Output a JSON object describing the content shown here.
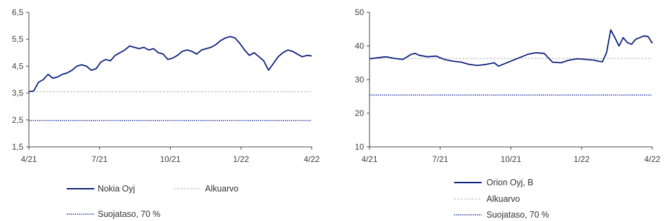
{
  "chart_data": [
    {
      "type": "line",
      "x_ticks": [
        "4/21",
        "7/21",
        "10/21",
        "1/22",
        "4/22"
      ],
      "y_ticks": [
        "1,5",
        "2,5",
        "3,5",
        "4,5",
        "5,5",
        "6,5"
      ],
      "ylim": [
        1.5,
        6.5
      ],
      "grid": false,
      "legend_position": "bottom",
      "series": [
        {
          "name": "Nokia Oyj",
          "style": "solid",
          "color": "#0a1e7a",
          "points": [
            [
              0,
              3.55
            ],
            [
              1,
              3.58
            ],
            [
              2,
              3.9
            ],
            [
              3,
              4.0
            ],
            [
              4,
              4.2
            ],
            [
              5,
              4.05
            ],
            [
              6,
              4.1
            ],
            [
              7,
              4.2
            ],
            [
              8,
              4.25
            ],
            [
              9,
              4.35
            ],
            [
              10,
              4.5
            ],
            [
              11,
              4.55
            ],
            [
              12,
              4.5
            ],
            [
              13,
              4.35
            ],
            [
              14,
              4.4
            ],
            [
              15,
              4.65
            ],
            [
              16,
              4.75
            ],
            [
              17,
              4.7
            ],
            [
              18,
              4.9
            ],
            [
              19,
              5.0
            ],
            [
              20,
              5.1
            ],
            [
              21,
              5.25
            ],
            [
              22,
              5.2
            ],
            [
              23,
              5.15
            ],
            [
              24,
              5.2
            ],
            [
              25,
              5.1
            ],
            [
              26,
              5.15
            ],
            [
              27,
              5.0
            ],
            [
              28,
              4.95
            ],
            [
              29,
              4.75
            ],
            [
              30,
              4.8
            ],
            [
              31,
              4.9
            ],
            [
              32,
              5.05
            ],
            [
              33,
              5.1
            ],
            [
              34,
              5.05
            ],
            [
              35,
              4.95
            ],
            [
              36,
              5.1
            ],
            [
              37,
              5.15
            ],
            [
              38,
              5.2
            ],
            [
              39,
              5.3
            ],
            [
              40,
              5.45
            ],
            [
              41,
              5.55
            ],
            [
              42,
              5.6
            ],
            [
              43,
              5.55
            ],
            [
              44,
              5.35
            ],
            [
              45,
              5.1
            ],
            [
              46,
              4.9
            ],
            [
              47,
              5.0
            ],
            [
              48,
              4.85
            ],
            [
              49,
              4.7
            ],
            [
              50,
              4.35
            ],
            [
              51,
              4.6
            ],
            [
              52,
              4.85
            ],
            [
              53,
              5.0
            ],
            [
              54,
              5.1
            ],
            [
              55,
              5.05
            ],
            [
              56,
              4.95
            ],
            [
              57,
              4.85
            ],
            [
              58,
              4.9
            ],
            [
              59,
              4.88
            ]
          ]
        },
        {
          "name": "Alkuarvo",
          "style": "dashed",
          "color": "#b4b4b4",
          "points": [
            [
              0,
              3.55
            ],
            [
              59,
              3.55
            ]
          ]
        },
        {
          "name": "Suojataso, 70 %",
          "style": "dotted",
          "color": "#1a2f99",
          "points": [
            [
              0,
              2.48
            ],
            [
              59,
              2.48
            ]
          ]
        }
      ]
    },
    {
      "type": "line",
      "x_ticks": [
        "4/21",
        "7/21",
        "10/21",
        "1/22",
        "4/22"
      ],
      "y_ticks": [
        "10",
        "20",
        "30",
        "40",
        "50"
      ],
      "ylim": [
        10,
        50
      ],
      "grid": false,
      "legend_position": "bottom",
      "series": [
        {
          "name": "Orion Oyj, B",
          "style": "solid",
          "color": "#0a1e7a",
          "points": [
            [
              0,
              36.2
            ],
            [
              2,
              36.5
            ],
            [
              4,
              36.8
            ],
            [
              6,
              36.3
            ],
            [
              8,
              36.0
            ],
            [
              10,
              37.5
            ],
            [
              11,
              37.8
            ],
            [
              12,
              37.2
            ],
            [
              14,
              36.8
            ],
            [
              16,
              37.0
            ],
            [
              18,
              36.0
            ],
            [
              20,
              35.5
            ],
            [
              22,
              35.2
            ],
            [
              24,
              34.5
            ],
            [
              26,
              34.2
            ],
            [
              28,
              34.5
            ],
            [
              30,
              35.0
            ],
            [
              31,
              34.0
            ],
            [
              32,
              34.5
            ],
            [
              34,
              35.5
            ],
            [
              36,
              36.5
            ],
            [
              38,
              37.5
            ],
            [
              40,
              38.0
            ],
            [
              42,
              37.8
            ],
            [
              43,
              36.5
            ],
            [
              44,
              35.2
            ],
            [
              46,
              35.0
            ],
            [
              48,
              35.8
            ],
            [
              50,
              36.2
            ],
            [
              52,
              36.0
            ],
            [
              54,
              35.8
            ],
            [
              55,
              35.5
            ],
            [
              56,
              35.3
            ],
            [
              57,
              38.0
            ],
            [
              58,
              44.8
            ],
            [
              59,
              42.5
            ],
            [
              60,
              40.0
            ],
            [
              61,
              42.5
            ],
            [
              62,
              41.0
            ],
            [
              63,
              40.5
            ],
            [
              64,
              42.0
            ],
            [
              65,
              42.5
            ],
            [
              66,
              43.0
            ],
            [
              67,
              42.8
            ],
            [
              68,
              40.8
            ]
          ]
        },
        {
          "name": "Alkuarvo",
          "style": "dashed",
          "color": "#b4b4b4",
          "points": [
            [
              0,
              36.3
            ],
            [
              68,
              36.3
            ]
          ]
        },
        {
          "name": "Suojataso, 70 %",
          "style": "dotted",
          "color": "#1a2f99",
          "points": [
            [
              0,
              25.4
            ],
            [
              68,
              25.4
            ]
          ]
        }
      ]
    }
  ]
}
